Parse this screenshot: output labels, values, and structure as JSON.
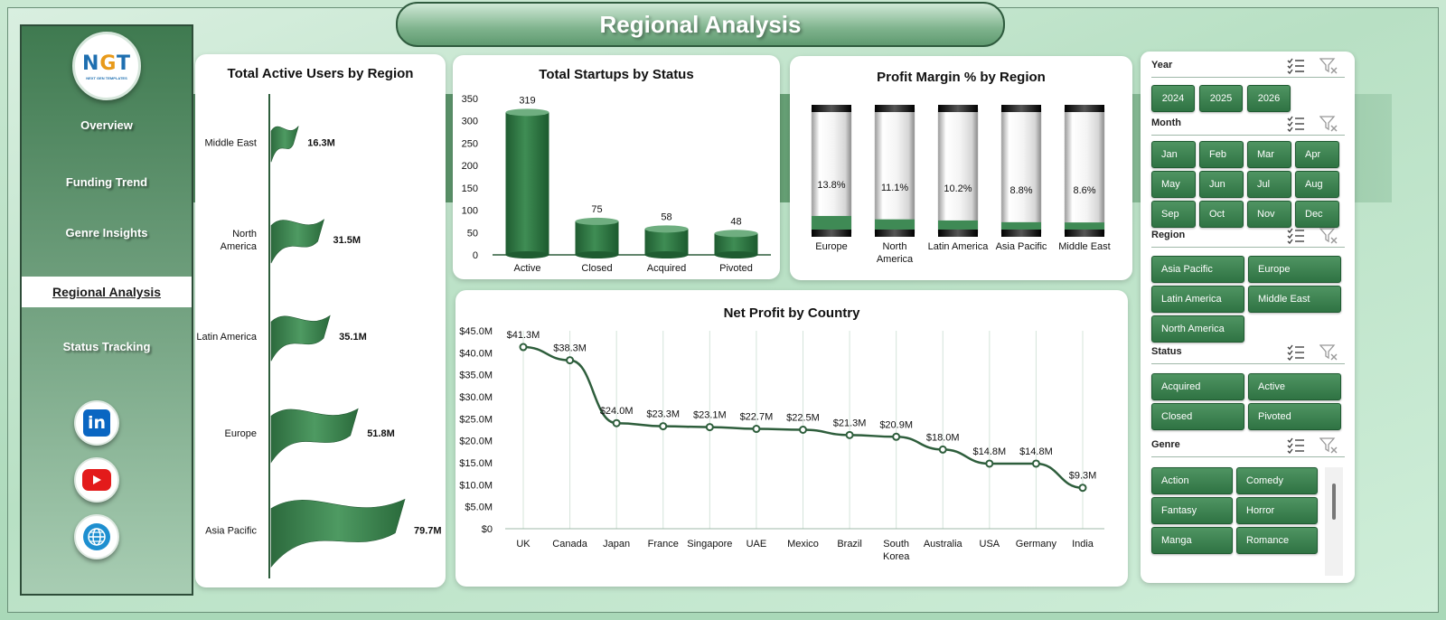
{
  "title": "Regional Analysis",
  "logo": {
    "mark_n": "N",
    "mark_g": "G",
    "mark_t": "T",
    "sub": "NEXT GEN TEMPLATES"
  },
  "nav": [
    {
      "label": "Overview",
      "active": false
    },
    {
      "label": "Funding Trend",
      "active": false
    },
    {
      "label": "Genre Insights",
      "active": false
    },
    {
      "label": "Regional Analysis",
      "active": true
    },
    {
      "label": "Status Tracking",
      "active": false
    }
  ],
  "social": [
    {
      "icon": "linkedin-icon",
      "text": "in"
    },
    {
      "icon": "youtube-icon"
    },
    {
      "icon": "globe-icon"
    }
  ],
  "colors": {
    "primary": "#2f7343",
    "dark": "#1f5a31",
    "line": "#2e5e3c"
  },
  "chart_data": [
    {
      "type": "bar",
      "title": "Total Active Users by Region",
      "categories": [
        "Middle East",
        "North America",
        "Latin America",
        "Europe",
        "Asia Pacific"
      ],
      "values": [
        16.3,
        31.5,
        35.1,
        51.8,
        79.7
      ],
      "labels": [
        "16.3M",
        "31.5M",
        "35.1M",
        "51.8M",
        "79.7M"
      ],
      "unit": "M",
      "orientation": "horizontal"
    },
    {
      "type": "bar",
      "title": "Total Startups by Status",
      "categories": [
        "Active",
        "Closed",
        "Acquired",
        "Pivoted"
      ],
      "values": [
        319,
        75,
        58,
        48
      ],
      "ylim": [
        0,
        350
      ],
      "yticks": [
        "350",
        "300",
        "250",
        "200",
        "150",
        "100",
        "50",
        "0"
      ],
      "grid": false
    },
    {
      "type": "bar",
      "title": "Profit Margin % by Region",
      "categories": [
        "Europe",
        "North America",
        "Latin America",
        "Asia Pacific",
        "Middle East"
      ],
      "category_lines": [
        [
          "Europe"
        ],
        [
          "North",
          "America"
        ],
        [
          "Latin America"
        ],
        [
          "Asia Pacific"
        ],
        [
          "Middle East"
        ]
      ],
      "values": [
        13.8,
        11.1,
        10.2,
        8.8,
        8.6
      ],
      "labels": [
        "13.8%",
        "11.1%",
        "10.2%",
        "8.8%",
        "8.6%"
      ],
      "ylim": [
        0,
        100
      ]
    },
    {
      "type": "line",
      "title": "Net Profit by Country",
      "categories": [
        "UK",
        "Canada",
        "Japan",
        "France",
        "Singapore",
        "UAE",
        "Mexico",
        "Brazil",
        "South Korea",
        "Australia",
        "USA",
        "Germany",
        "India"
      ],
      "category_lines": [
        [
          "UK"
        ],
        [
          "Canada"
        ],
        [
          "Japan"
        ],
        [
          "France"
        ],
        [
          "Singapore"
        ],
        [
          "UAE"
        ],
        [
          "Mexico"
        ],
        [
          "Brazil"
        ],
        [
          "South",
          "Korea"
        ],
        [
          "Australia"
        ],
        [
          "USA"
        ],
        [
          "Germany"
        ],
        [
          "India"
        ]
      ],
      "values": [
        41.3,
        38.3,
        24.0,
        23.3,
        23.1,
        22.7,
        22.5,
        21.3,
        20.9,
        18.0,
        14.8,
        14.8,
        9.3
      ],
      "labels": [
        "$41.3M",
        "$38.3M",
        "$24.0M",
        "$23.3M",
        "$23.1M",
        "$22.7M",
        "$22.5M",
        "$21.3M",
        "$20.9M",
        "$18.0M",
        "$14.8M",
        "$14.8M",
        "$9.3M"
      ],
      "ylim": [
        0,
        45
      ],
      "yticks": [
        "$45.0M",
        "$40.0M",
        "$35.0M",
        "$30.0M",
        "$25.0M",
        "$20.0M",
        "$15.0M",
        "$10.0M",
        "$5.0M",
        "$0"
      ],
      "grid": "vertical"
    }
  ],
  "filters": {
    "year": {
      "label": "Year",
      "options": [
        "2024",
        "2025",
        "2026"
      ]
    },
    "month": {
      "label": "Month",
      "options": [
        "Jan",
        "Feb",
        "Mar",
        "Apr",
        "May",
        "Jun",
        "Jul",
        "Aug",
        "Sep",
        "Oct",
        "Nov",
        "Dec"
      ]
    },
    "region": {
      "label": "Region",
      "options": [
        "Asia Pacific",
        "Europe",
        "Latin America",
        "Middle East",
        "North America"
      ]
    },
    "status": {
      "label": "Status",
      "options": [
        "Acquired",
        "Active",
        "Closed",
        "Pivoted"
      ]
    },
    "genre": {
      "label": "Genre",
      "options": [
        "Action",
        "Comedy",
        "Fantasy",
        "Horror",
        "Manga",
        "Romance"
      ]
    }
  }
}
